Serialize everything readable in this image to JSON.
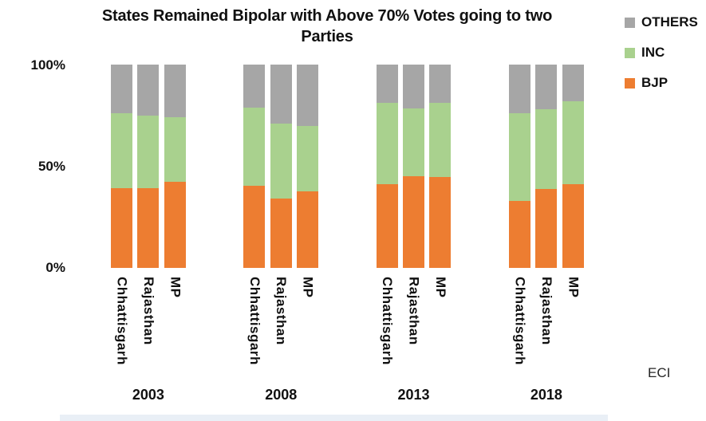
{
  "title": {
    "full": "States Remained Bipolar with Above 70% Votes going to two Parties",
    "line1": "States Remained Bipolar with Above 70% Votes going to two",
    "line2": "Parties"
  },
  "legend": {
    "items": [
      {
        "label": "OTHERS",
        "color": "#A6A6A6"
      },
      {
        "label": "INC",
        "color": "#A9D18E"
      },
      {
        "label": "BJP",
        "color": "#ED7D31"
      }
    ]
  },
  "y_axis": {
    "ticks": [
      "100%",
      "50%",
      "0%"
    ],
    "min": 0,
    "max": 100
  },
  "source": {
    "label": "ECI"
  },
  "chart_data": {
    "type": "bar",
    "stacked": true,
    "title": "States Remained Bipolar with Above 70% Votes going to two Parties",
    "xlabel": "",
    "ylabel": "",
    "ylim": [
      0,
      100
    ],
    "y_tick_labels": [
      "0%",
      "50%",
      "100%"
    ],
    "grid": false,
    "legend_position": "top-right",
    "group_labels": [
      "2003",
      "2008",
      "2013",
      "2018"
    ],
    "bar_labels": [
      "Chhattisgarh",
      "Rajasthan",
      "MP"
    ],
    "unit": "percent of votes",
    "series": [
      {
        "name": "BJP",
        "color": "#ED7D31",
        "values": [
          [
            39.3,
            39.2,
            42.5
          ],
          [
            40.3,
            34.3,
            37.6
          ],
          [
            41.0,
            45.2,
            44.9
          ],
          [
            33.0,
            38.8,
            41.0
          ]
        ]
      },
      {
        "name": "INC",
        "color": "#A9D18E",
        "values": [
          [
            36.7,
            35.7,
            31.6
          ],
          [
            38.6,
            36.8,
            32.4
          ],
          [
            40.3,
            33.1,
            36.4
          ],
          [
            43.0,
            39.3,
            40.9
          ]
        ]
      },
      {
        "name": "OTHERS",
        "color": "#A6A6A6",
        "values": [
          [
            24.0,
            25.1,
            25.9
          ],
          [
            21.1,
            28.9,
            30.0
          ],
          [
            18.7,
            21.7,
            18.7
          ],
          [
            24.0,
            21.9,
            18.1
          ]
        ]
      }
    ],
    "source": "ECI"
  }
}
